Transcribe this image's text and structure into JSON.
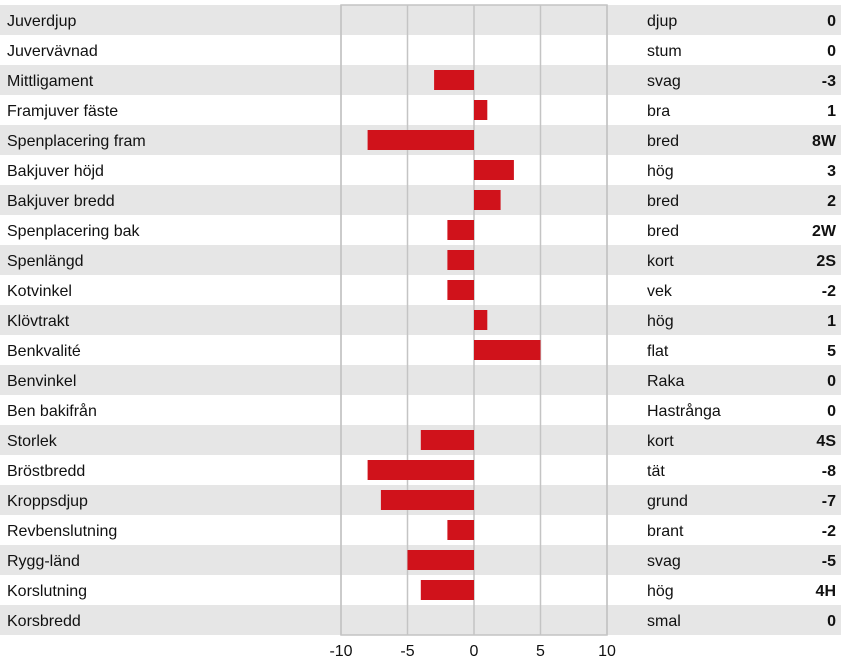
{
  "chart_data": {
    "type": "bar",
    "orientation": "horizontal",
    "title": "",
    "xlabel": "",
    "ylabel": "",
    "xlim": [
      -10,
      10
    ],
    "xticks": [
      -10,
      -5,
      0,
      5,
      10
    ],
    "grid": true,
    "bar_color": "#d0121b",
    "stripe_color": "#e6e6e6",
    "rows": [
      {
        "label": "Juverdjup",
        "value": 0,
        "descriptor": "djup",
        "score": "0"
      },
      {
        "label": "Juvervävnad",
        "value": 0,
        "descriptor": "stum",
        "score": "0"
      },
      {
        "label": "Mittligament",
        "value": -3,
        "descriptor": "svag",
        "score": "-3"
      },
      {
        "label": "Framjuver fäste",
        "value": 1,
        "descriptor": "bra",
        "score": "1"
      },
      {
        "label": "Spenplacering fram",
        "value": -8,
        "descriptor": "bred",
        "score": "8W"
      },
      {
        "label": "Bakjuver höjd",
        "value": 3,
        "descriptor": "hög",
        "score": "3"
      },
      {
        "label": "Bakjuver bredd",
        "value": 2,
        "descriptor": "bred",
        "score": "2"
      },
      {
        "label": "Spenplacering bak",
        "value": -2,
        "descriptor": "bred",
        "score": "2W"
      },
      {
        "label": "Spenlängd",
        "value": -2,
        "descriptor": "kort",
        "score": "2S"
      },
      {
        "label": "Kotvinkel",
        "value": -2,
        "descriptor": "vek",
        "score": "-2"
      },
      {
        "label": "Klövtrakt",
        "value": 1,
        "descriptor": "hög",
        "score": "1"
      },
      {
        "label": "Benkvalité",
        "value": 5,
        "descriptor": "flat",
        "score": "5"
      },
      {
        "label": "Benvinkel",
        "value": 0,
        "descriptor": "Raka",
        "score": "0"
      },
      {
        "label": "Ben bakifrån",
        "value": 0,
        "descriptor": "Hastrånga",
        "score": "0"
      },
      {
        "label": "Storlek",
        "value": -4,
        "descriptor": "kort",
        "score": "4S"
      },
      {
        "label": "Bröstbredd",
        "value": -8,
        "descriptor": "tät",
        "score": "-8"
      },
      {
        "label": "Kroppsdjup",
        "value": -7,
        "descriptor": "grund",
        "score": "-7"
      },
      {
        "label": "Revbenslutning",
        "value": -2,
        "descriptor": "brant",
        "score": "-2"
      },
      {
        "label": "Rygg-länd",
        "value": -5,
        "descriptor": "svag",
        "score": "-5"
      },
      {
        "label": "Korslutning",
        "value": -4,
        "descriptor": "hög",
        "score": "4H"
      },
      {
        "label": "Korsbredd",
        "value": 0,
        "descriptor": "smal",
        "score": "0"
      }
    ]
  }
}
